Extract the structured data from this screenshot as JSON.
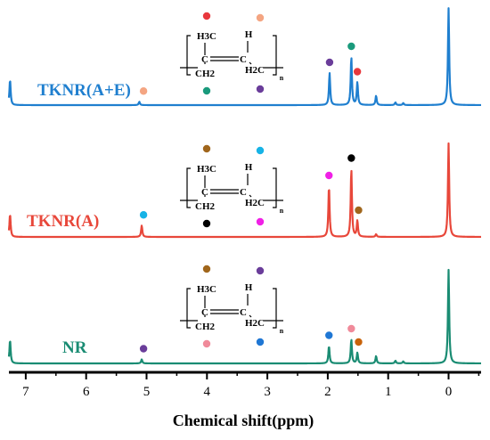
{
  "chart_data": {
    "type": "line",
    "xlabel": "Chemical shift(ppm)",
    "xlim": [
      7.5,
      -0.5
    ],
    "x_reversed": true,
    "x_ticks": [
      7,
      6,
      5,
      4,
      3,
      2,
      1,
      0
    ],
    "y_axis_shown": false,
    "legend": "none",
    "series": [
      {
        "name": "TKNR(A+E)",
        "color": "#1f7fcf",
        "offset": 2,
        "peaks": [
          {
            "x": 7.26,
            "height": 0.38
          },
          {
            "x": 5.12,
            "height": 0.05
          },
          {
            "x": 1.97,
            "height": 0.48
          },
          {
            "x": 1.61,
            "height": 0.72
          },
          {
            "x": 1.51,
            "height": 0.34
          },
          {
            "x": 1.2,
            "height": 0.14
          },
          {
            "x": 0.88,
            "height": 0.04
          },
          {
            "x": 0.75,
            "height": 0.03
          },
          {
            "x": 0.0,
            "height": 1.45
          }
        ],
        "markers": [
          {
            "x": 5.05,
            "color": "#f4a582",
            "side": "above"
          },
          {
            "x": 1.97,
            "color": "#6a3d9a",
            "side": "above"
          },
          {
            "x": 1.61,
            "color": "#1a9a7c",
            "side": "above"
          },
          {
            "x": 1.51,
            "color": "#e8383d",
            "side": "above"
          }
        ],
        "structure": {
          "substituent_left": "H3C",
          "substituent_right": "H",
          "ring_left": "C",
          "ring_right": "C",
          "ch2_left": "CH2",
          "ch2_right": "H2C",
          "subscript": "n",
          "dot_top_left": "#e8383d",
          "dot_top_right": "#f4a582",
          "dot_bottom_left": "#1a9a7c",
          "dot_bottom_right": "#6a3d9a"
        }
      },
      {
        "name": "TKNR(A)",
        "color": "#e8473a",
        "offset": 1,
        "peaks": [
          {
            "x": 7.26,
            "height": 0.34
          },
          {
            "x": 5.08,
            "height": 0.17
          },
          {
            "x": 1.98,
            "height": 0.76
          },
          {
            "x": 1.61,
            "height": 1.02
          },
          {
            "x": 1.51,
            "height": 0.24
          },
          {
            "x": 1.2,
            "height": 0.04
          },
          {
            "x": 0.0,
            "height": 1.4
          }
        ],
        "markers": [
          {
            "x": 5.05,
            "color": "#17b3e6",
            "side": "above"
          },
          {
            "x": 1.98,
            "color": "#f020e6",
            "side": "above"
          },
          {
            "x": 1.61,
            "color": "#000000",
            "side": "above"
          },
          {
            "x": 1.49,
            "color": "#a0661c",
            "side": "above"
          }
        ],
        "structure": {
          "substituent_left": "H3C",
          "substituent_right": "H",
          "ring_left": "C",
          "ring_right": "C",
          "ch2_left": "CH2",
          "ch2_right": "H2C",
          "subscript": "n",
          "dot_top_left": "#a0661c",
          "dot_top_right": "#17b3e6",
          "dot_bottom_left": "#000000",
          "dot_bottom_right": "#f020e6"
        }
      },
      {
        "name": "NR",
        "color": "#1a8c73",
        "offset": 0,
        "peaks": [
          {
            "x": 7.26,
            "height": 0.35
          },
          {
            "x": 5.08,
            "height": 0.06
          },
          {
            "x": 1.98,
            "height": 0.26
          },
          {
            "x": 1.61,
            "height": 0.36
          },
          {
            "x": 1.51,
            "height": 0.16
          },
          {
            "x": 1.2,
            "height": 0.11
          },
          {
            "x": 0.88,
            "height": 0.04
          },
          {
            "x": 0.75,
            "height": 0.03
          },
          {
            "x": 0.0,
            "height": 1.4
          }
        ],
        "markers": [
          {
            "x": 5.05,
            "color": "#6a3d9a",
            "side": "above"
          },
          {
            "x": 1.98,
            "color": "#1f77d4",
            "side": "above"
          },
          {
            "x": 1.61,
            "color": "#f08a9a",
            "side": "above"
          },
          {
            "x": 1.49,
            "color": "#c8620a",
            "side": "above"
          }
        ],
        "structure": {
          "substituent_left": "H3C",
          "substituent_right": "H",
          "ring_left": "C",
          "ring_right": "C",
          "ch2_left": "CH2",
          "ch2_right": "H2C",
          "subscript": "n",
          "dot_top_left": "#a0661c",
          "dot_top_right": "#6a3d9a",
          "dot_bottom_left": "#f08a9a",
          "dot_bottom_right": "#1f77d4"
        }
      }
    ]
  }
}
